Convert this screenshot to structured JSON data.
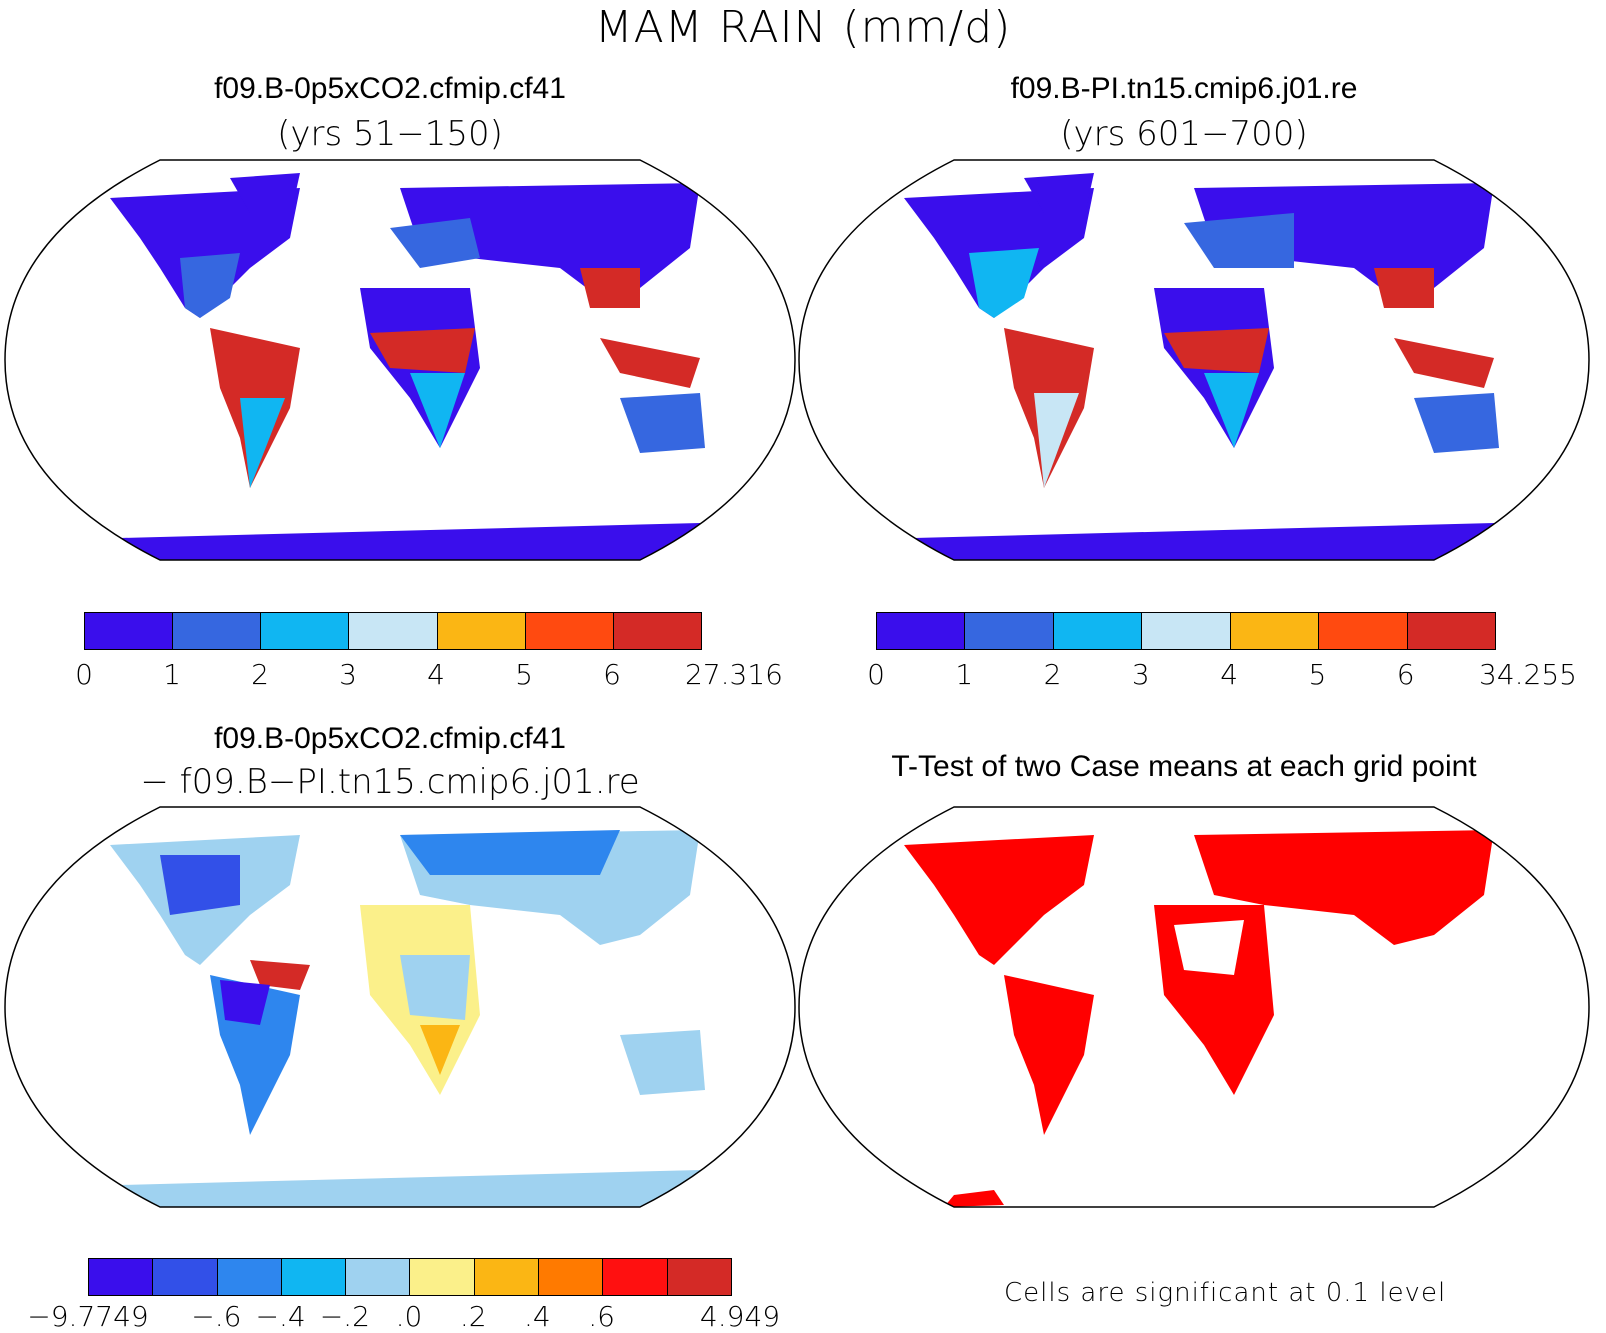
{
  "figure_title": "MAM RAIN (mm/d)",
  "panels": [
    {
      "title": "f09.B-0p5xCO2.cfmip.cf41",
      "subtitle": "(yrs 51−150)"
    },
    {
      "title": "f09.B-PI.tn15.cmip6.j01.re",
      "subtitle": "(yrs 601−700)"
    },
    {
      "title": "f09.B-0p5xCO2.cfmip.cf41",
      "subtitle": "− f09.B−PI.tn15.cmip6.j01.re"
    },
    {
      "title": "T-Test of two Case means at each grid point",
      "subtitle": ""
    }
  ],
  "colorbars": [
    {
      "colors": [
        "#3a0eec",
        "#3667e0",
        "#10b6f2",
        "#c8e6f5",
        "#fbb614",
        "#ff4a10",
        "#d42a26"
      ],
      "labels": [
        "0",
        "1",
        "2",
        "3",
        "4",
        "5",
        "6",
        "27.316"
      ]
    },
    {
      "colors": [
        "#3a0eec",
        "#3667e0",
        "#10b6f2",
        "#c8e6f5",
        "#fbb614",
        "#ff4a10",
        "#d42a26"
      ],
      "labels": [
        "0",
        "1",
        "2",
        "3",
        "4",
        "5",
        "6",
        "34.255"
      ]
    },
    {
      "colors": [
        "#3a0eec",
        "#3250e8",
        "#2e86ee",
        "#10b6f2",
        "#9fd2f0",
        "#fbf08a",
        "#fbb614",
        "#ff7a00",
        "#ff1010",
        "#d42a26"
      ],
      "labels": [
        "−9.7749",
        "",
        "−.6",
        "−.4",
        "−.2",
        ".0",
        ".2",
        ".4",
        ".6",
        "",
        "4.949"
      ]
    }
  ],
  "significance_note": "Cells are significant at 0.1 level",
  "significance_color": "#ff0000"
}
